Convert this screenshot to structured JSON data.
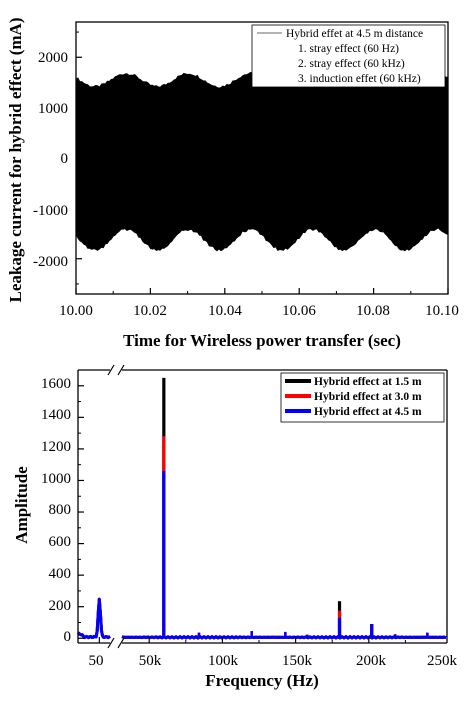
{
  "chart_data": [
    {
      "type": "line",
      "xlabel": "Time for Wireless power transfer (sec)",
      "ylabel": "Leakage current for hybrid effect (mA)",
      "xlim": [
        10.0,
        10.1
      ],
      "ylim": [
        -2700,
        2700
      ],
      "x_ticks": [
        "10.00",
        "10.02",
        "10.04",
        "10.06",
        "10.08",
        "10.10"
      ],
      "y_ticks": [
        "-2000",
        "-1000",
        "0",
        "1000",
        "2000"
      ],
      "series": [
        {
          "name": "Hybrid effet at 4.5 m distance",
          "color": "#000000",
          "envelope_period_s": 0.0167,
          "upper_envelope_mA": {
            "max": 1650,
            "min": 1390
          },
          "lower_envelope_mA": {
            "max": -1390,
            "min": -1800
          }
        }
      ],
      "legend": {
        "position": "top-right",
        "title": "Hybrid effet at 4.5 m distance",
        "items": [
          "1. stray effect (60 Hz)",
          "2. stray effect (60 kHz)",
          "3. induction effet (60 kHz)"
        ]
      },
      "grid": false
    },
    {
      "type": "line",
      "xlabel": "Frequency (Hz)",
      "ylabel": "Amplitude",
      "axis_break": "between 50 Hz and 50k",
      "ylim": [
        -30,
        1700
      ],
      "x_ticks": [
        "50",
        "50k",
        "100k",
        "150k",
        "200k",
        "250k"
      ],
      "y_ticks": [
        "0",
        "200",
        "400",
        "600",
        "800",
        "1000",
        "1200",
        "1400",
        "1600"
      ],
      "series": [
        {
          "name": "Hybrid effect at 1.5 m",
          "color": "#000000",
          "peaks": [
            {
              "f": 50,
              "a": 240
            },
            {
              "f": 60000,
              "a": 1650
            },
            {
              "f": 180000,
              "a": 235
            },
            {
              "f": 202000,
              "a": 90
            }
          ]
        },
        {
          "name": "Hybrid effect at 3.0 m",
          "color": "#ff0000",
          "peaks": [
            {
              "f": 50,
              "a": 240
            },
            {
              "f": 60000,
              "a": 1280
            },
            {
              "f": 180000,
              "a": 175
            },
            {
              "f": 202000,
              "a": 90
            }
          ]
        },
        {
          "name": "Hybrid effect at 4.5 m",
          "color": "#0000ff",
          "peaks": [
            {
              "f": 50,
              "a": 240
            },
            {
              "f": 60000,
              "a": 1060
            },
            {
              "f": 180000,
              "a": 130
            },
            {
              "f": 202000,
              "a": 90
            }
          ]
        }
      ],
      "legend": {
        "position": "top-right",
        "items": [
          "Hybrid effect at 1.5 m",
          "Hybrid effect at 3.0 m",
          "Hybrid effect at 4.5 m"
        ]
      },
      "grid": false
    }
  ]
}
